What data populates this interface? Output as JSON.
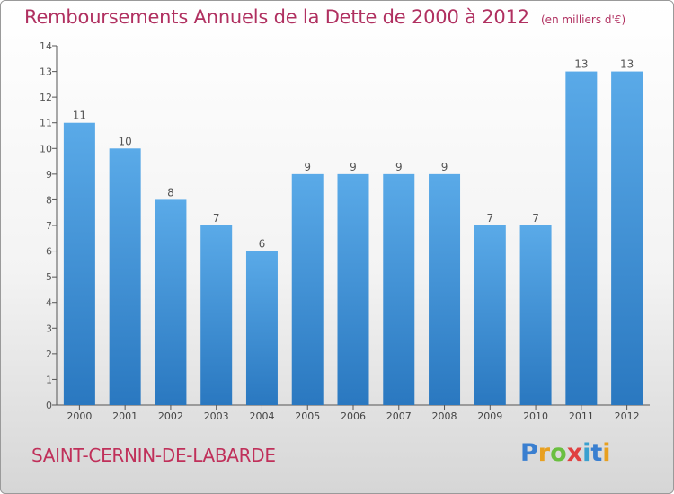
{
  "header": {
    "title": "Remboursements Annuels de la Dette de 2000 à 2012",
    "unit": "(en milliers d'€)"
  },
  "commune": "SAINT-CERNIN-DE-LABARDE",
  "logo": {
    "text": "Proxiti",
    "colors": [
      "#3a7fd0",
      "#e8a020",
      "#6abf40",
      "#e04040",
      "#3aa0d0"
    ]
  },
  "chart_data": {
    "type": "bar",
    "categories": [
      "2000",
      "2001",
      "2002",
      "2003",
      "2004",
      "2005",
      "2006",
      "2007",
      "2008",
      "2009",
      "2010",
      "2011",
      "2012"
    ],
    "values": [
      11,
      10,
      8,
      7,
      6,
      9,
      9,
      9,
      9,
      7,
      7,
      13,
      13
    ],
    "data_labels": [
      "11",
      "10",
      "8",
      "7",
      "6",
      "9",
      "9",
      "9",
      "9",
      "7",
      "7",
      "13",
      "13"
    ],
    "y_ticks": [
      "0",
      "1",
      "2",
      "3",
      "4",
      "5",
      "6",
      "7",
      "8",
      "9",
      "10",
      "11",
      "12",
      "13",
      "14"
    ],
    "ylim": [
      0,
      14
    ],
    "grid": false,
    "bar_color": "#4a9ee0"
  }
}
